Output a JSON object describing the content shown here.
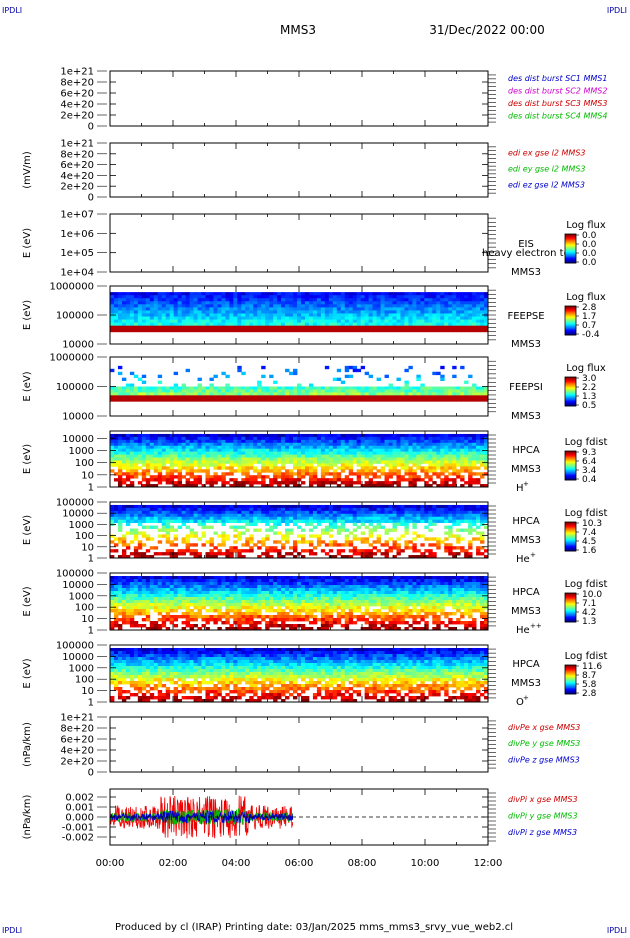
{
  "header": {
    "corner_tl": "IPDLI",
    "corner_tr": "IPDLI",
    "corner_bl": "IPDLI",
    "corner_br": "IPDLI",
    "spacecraft": "MMS3",
    "date": "31/Dec/2022 00:00"
  },
  "footer": {
    "text": "Produced by cl (IRAP)   Printing date: 03/Jan/2025   mms_mms3_srvy_vue_web2.cl"
  },
  "time_axis": {
    "ticks": [
      "00:00",
      "02:00",
      "04:00",
      "06:00",
      "08:00",
      "10:00",
      "12:00"
    ],
    "range_hours": [
      0,
      12
    ]
  },
  "colors": {
    "blue": "#0000cc",
    "magenta": "#cc00cc",
    "red": "#cc0000",
    "green": "#00bb00"
  },
  "chart_data": [
    {
      "type": "line",
      "ylabel": "",
      "yticks": [
        "1e+21",
        "8e+20",
        "6e+20",
        "4e+20",
        "2e+20",
        "0"
      ],
      "ylim": [
        0,
        1e+21
      ],
      "series": [],
      "legend": [
        {
          "label": "des dist burst SC1 MMS1",
          "color": "#0000cc"
        },
        {
          "label": "des dist burst SC2 MMS2",
          "color": "#cc00cc"
        },
        {
          "label": "des dist burst SC3 MMS3",
          "color": "#cc0000"
        },
        {
          "label": "des dist burst SC4 MMS4",
          "color": "#00bb00"
        }
      ],
      "zero_line": true
    },
    {
      "type": "line",
      "ylabel": "(mV/m)",
      "yticks": [
        "1e+21",
        "8e+20",
        "6e+20",
        "4e+20",
        "2e+20",
        "0"
      ],
      "ylim": [
        0,
        1e+21
      ],
      "series": [],
      "legend": [
        {
          "label": "edi ex gse l2 MMS3",
          "color": "#cc0000"
        },
        {
          "label": "edi ey gse l2 MMS3",
          "color": "#00bb00"
        },
        {
          "label": "edi ez gse l2 MMS3",
          "color": "#0000cc"
        }
      ],
      "zero_line": true
    },
    {
      "type": "heatmap",
      "ylabel": "E (eV)",
      "yticks": [
        "1e+07",
        "1e+06",
        "1e+05",
        "1e+04"
      ],
      "yscale": "log",
      "ylim": [
        10000,
        10000000
      ],
      "instrument": "EIS",
      "overlay": "heavy electron to",
      "spacecraft": "MMS3",
      "colorbar": {
        "title": "Log flux",
        "ticks": [
          "0.0",
          "0.0",
          "0.0",
          "0.0"
        ]
      },
      "data_extent_hours": [
        0,
        0
      ]
    },
    {
      "type": "heatmap",
      "ylabel": "E (eV)",
      "yticks": [
        "1000000",
        "100000",
        "10000"
      ],
      "yscale": "log",
      "ylim": [
        10000,
        1000000
      ],
      "instrument": "FEEPSE",
      "spacecraft": "MMS3",
      "colorbar": {
        "title": "Log flux",
        "ticks": [
          "2.8",
          "1.7",
          "0.7",
          "-0.4"
        ]
      },
      "data_extent_hours": [
        0,
        12
      ]
    },
    {
      "type": "heatmap",
      "ylabel": "E (eV)",
      "yticks": [
        "1000000",
        "100000",
        "10000"
      ],
      "yscale": "log",
      "ylim": [
        10000,
        1000000
      ],
      "instrument": "FEEPSI",
      "spacecraft": "MMS3",
      "colorbar": {
        "title": "Log flux",
        "ticks": [
          "3.0",
          "2.2",
          "1.3",
          "0.5"
        ]
      },
      "data_extent_hours": [
        0,
        12
      ]
    },
    {
      "type": "heatmap",
      "ylabel": "E (eV)",
      "yticks": [
        "10000",
        "1000",
        "100",
        "10",
        "1"
      ],
      "yscale": "log",
      "ylim": [
        1,
        40000
      ],
      "instrument": "HPCA",
      "spacecraft": "MMS3",
      "species": "H",
      "species_charge": "+",
      "colorbar": {
        "title": "Log fdist",
        "ticks": [
          "9.3",
          "6.4",
          "3.4",
          "0.4"
        ]
      },
      "data_extent_hours": [
        0,
        12
      ]
    },
    {
      "type": "heatmap",
      "ylabel": "E (eV)",
      "yticks": [
        "100000",
        "10000",
        "1000",
        "100",
        "10",
        "1"
      ],
      "yscale": "log",
      "ylim": [
        1,
        100000
      ],
      "instrument": "HPCA",
      "spacecraft": "MMS3",
      "species": "He",
      "species_charge": "+",
      "colorbar": {
        "title": "Log fdist",
        "ticks": [
          "10.3",
          "7.4",
          "4.5",
          "1.6"
        ]
      },
      "data_extent_hours": [
        0,
        12
      ]
    },
    {
      "type": "heatmap",
      "ylabel": "E (eV)",
      "yticks": [
        "100000",
        "10000",
        "1000",
        "100",
        "10",
        "1"
      ],
      "yscale": "log",
      "ylim": [
        1,
        100000
      ],
      "instrument": "HPCA",
      "spacecraft": "MMS3",
      "species": "He",
      "species_charge": "++",
      "colorbar": {
        "title": "Log fdist",
        "ticks": [
          "10.0",
          "7.1",
          "4.2",
          "1.3"
        ]
      },
      "data_extent_hours": [
        0,
        12
      ]
    },
    {
      "type": "heatmap",
      "ylabel": "E (eV)",
      "yticks": [
        "100000",
        "10000",
        "1000",
        "100",
        "10",
        "1"
      ],
      "yscale": "log",
      "ylim": [
        1,
        100000
      ],
      "instrument": "HPCA",
      "spacecraft": "MMS3",
      "species": "O",
      "species_charge": "+",
      "colorbar": {
        "title": "Log fdist",
        "ticks": [
          "11.6",
          "8.7",
          "5.8",
          "2.8"
        ]
      },
      "data_extent_hours": [
        0,
        12
      ]
    },
    {
      "type": "line",
      "ylabel": "(nPa/km)",
      "yticks": [
        "1e+21",
        "8e+20",
        "6e+20",
        "4e+20",
        "2e+20",
        "0"
      ],
      "ylim": [
        0,
        1e+21
      ],
      "series": [],
      "legend": [
        {
          "label": "divPe x gse MMS3",
          "color": "#cc0000"
        },
        {
          "label": "divPe y gse MMS3",
          "color": "#00bb00"
        },
        {
          "label": "divPe z gse MMS3",
          "color": "#0000cc"
        }
      ],
      "zero_line": true
    },
    {
      "type": "line",
      "ylabel": "(nPa/km)",
      "yticks": [
        "0.002",
        "0.001",
        "0.000",
        "-0.001",
        "-0.002"
      ],
      "ylim": [
        -0.0028,
        0.0028
      ],
      "series": [
        {
          "name": "divPi x gse MMS3",
          "color": "#ee0000",
          "amplitude": 0.0012,
          "x_range": [
            0,
            5.8
          ]
        },
        {
          "name": "divPi y gse MMS3",
          "color": "#00bb00",
          "amplitude": 0.00045,
          "x_range": [
            0,
            5.8
          ]
        },
        {
          "name": "divPi z gse MMS3",
          "color": "#0000cc",
          "amplitude": 0.00035,
          "x_range": [
            0,
            5.8
          ]
        }
      ],
      "legend": [
        {
          "label": "divPi x gse MMS3",
          "color": "#cc0000"
        },
        {
          "label": "divPi y gse MMS3",
          "color": "#00bb00"
        },
        {
          "label": "divPi z gse MMS3",
          "color": "#0000cc"
        }
      ],
      "zero_line": true
    }
  ]
}
